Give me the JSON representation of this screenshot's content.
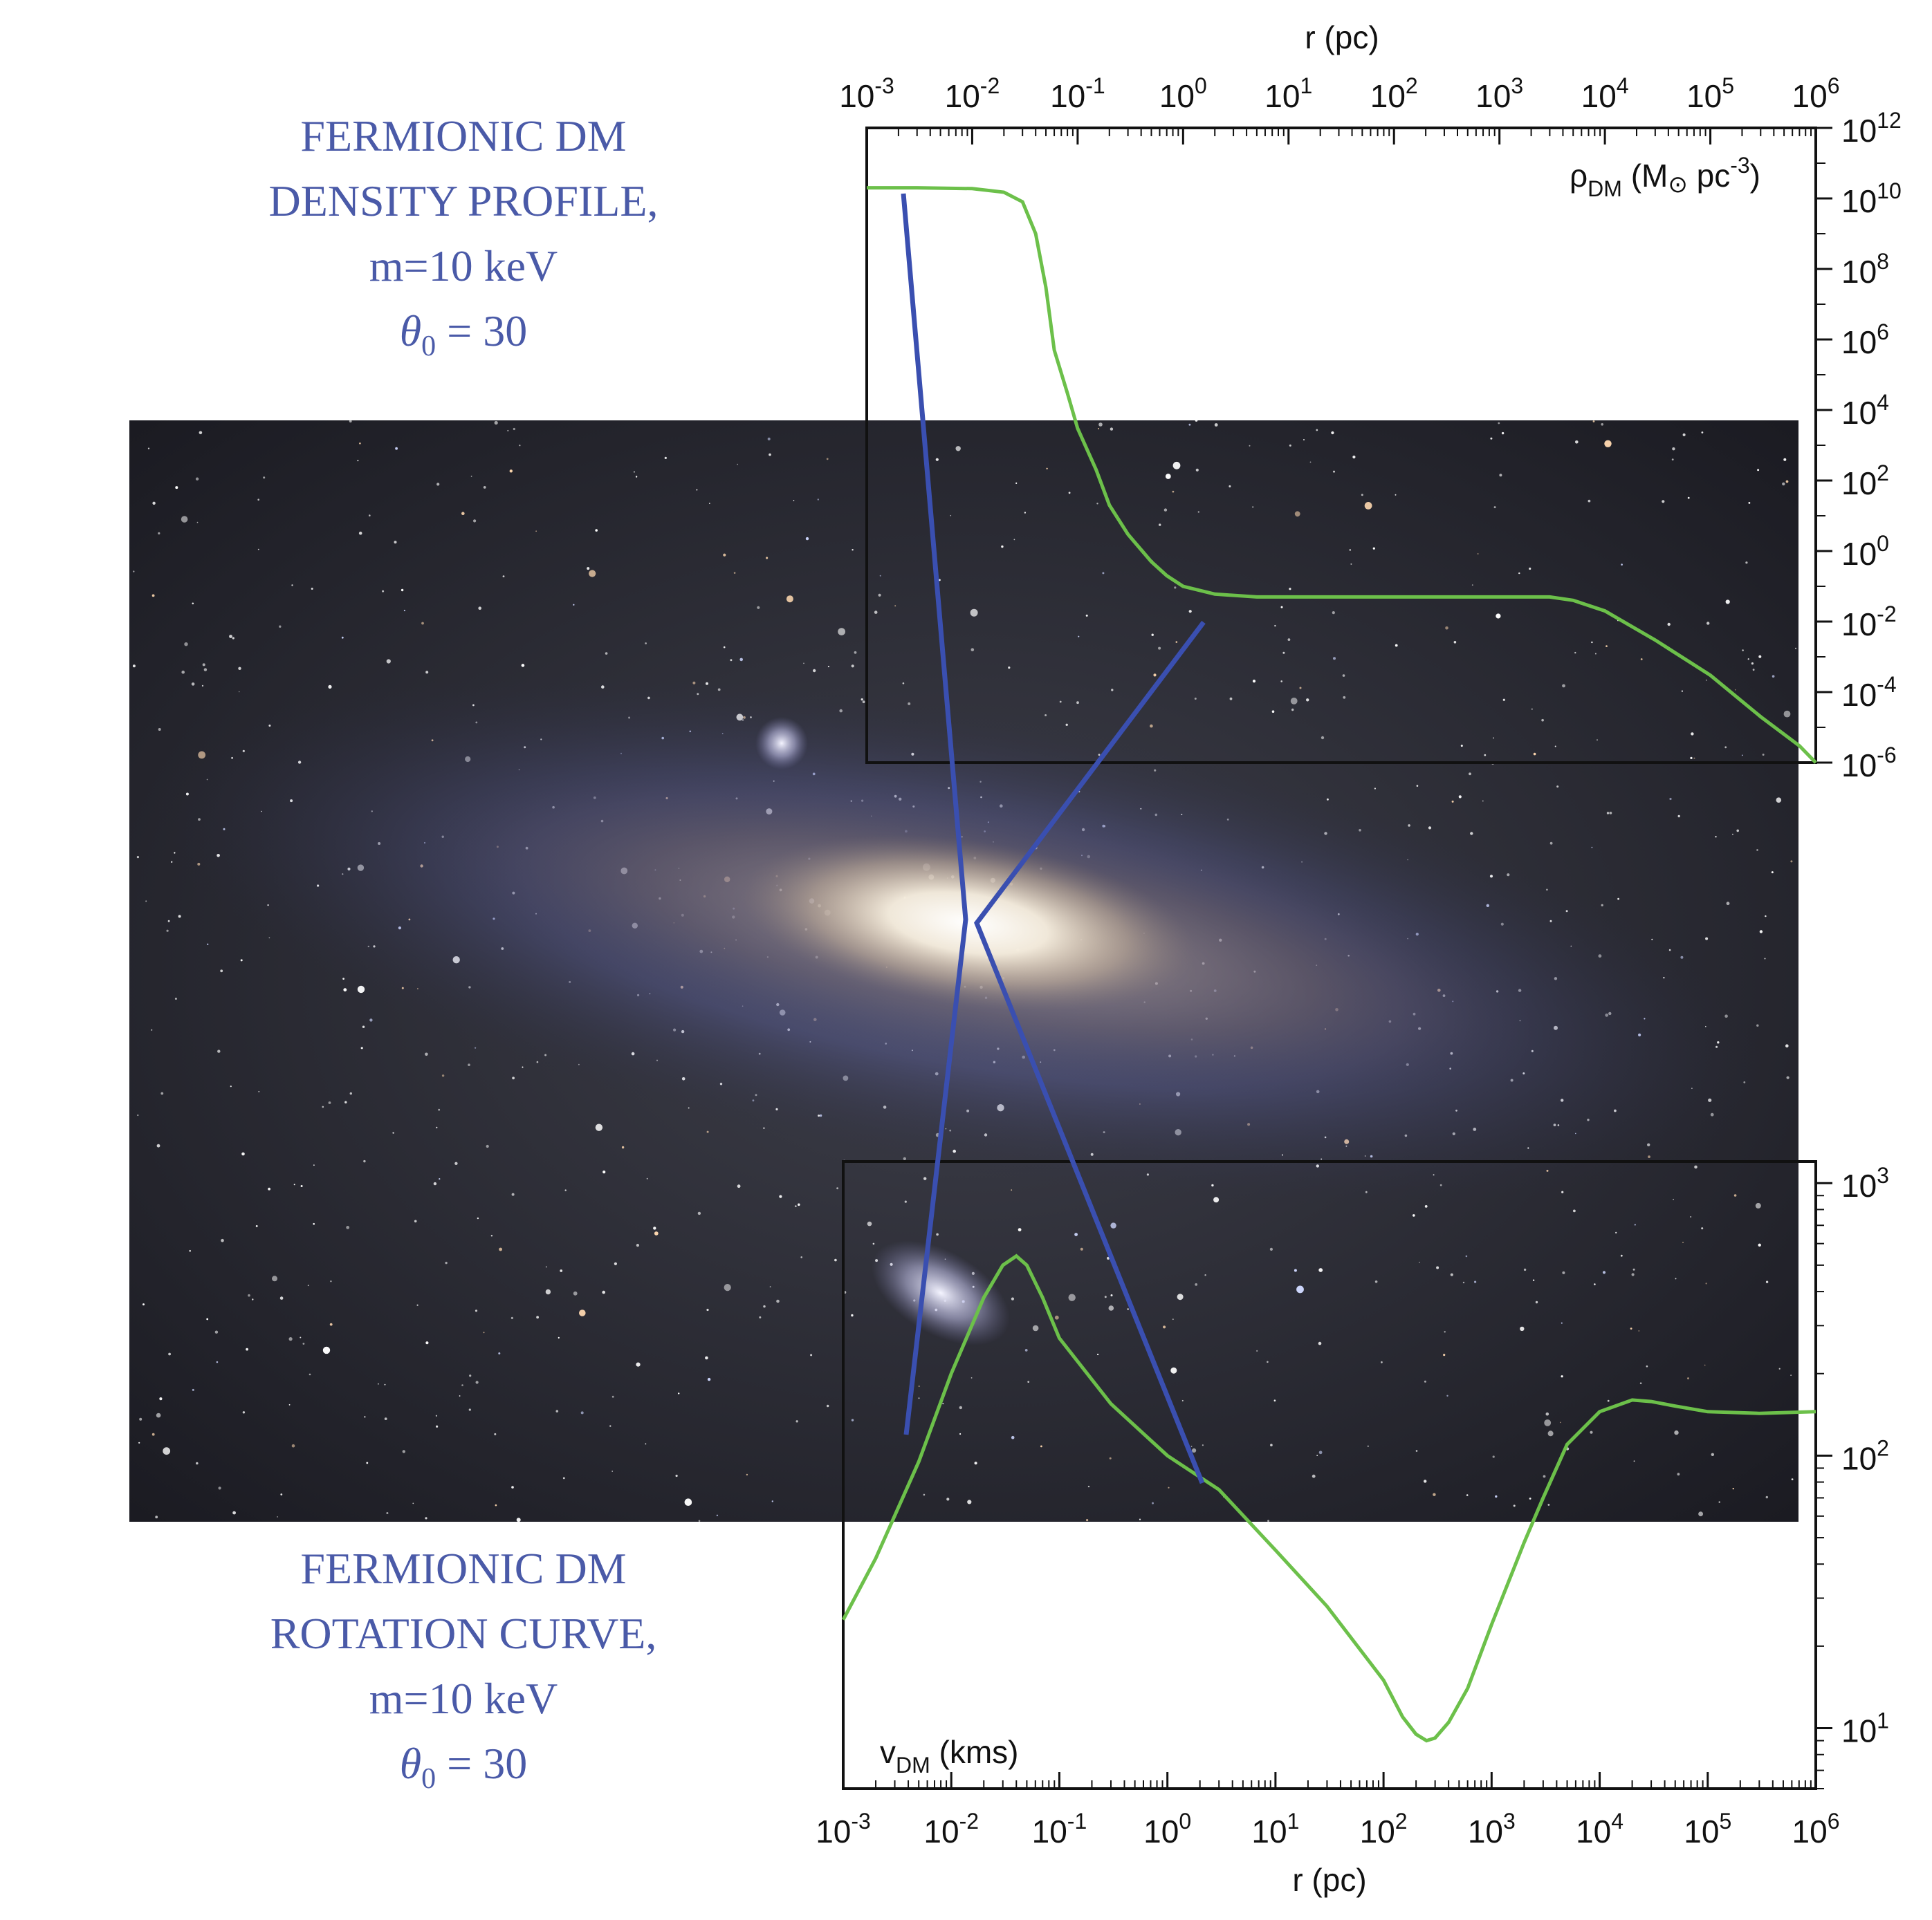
{
  "captions": {
    "density": {
      "line1": "FERMIONIC DM",
      "line2": "DENSITY PROFILE,",
      "line3": "m=10 keV",
      "theta_symbol": "θ",
      "theta_subscript": "0",
      "theta_value": "= 30"
    },
    "rotation": {
      "line1": "FERMIONIC DM",
      "line2": "ROTATION CURVE,",
      "line3": "m=10 keV",
      "theta_symbol": "θ",
      "theta_subscript": "0",
      "theta_value": "= 30"
    }
  },
  "background_image": "Andromeda galaxy star field photograph",
  "colors": {
    "curve": "#6cc04a",
    "pointer": "#3a4fb0",
    "caption": "#4a5aa8",
    "axis": "#111111"
  },
  "chart_data": [
    {
      "type": "line",
      "panel": "density",
      "xlabel": "r (pc)",
      "xscale": "log",
      "xlim": [
        0.001,
        1000000
      ],
      "x_tick_labels": [
        "10^-3",
        "10^-2",
        "10^-1",
        "10^0",
        "10^1",
        "10^2",
        "10^3",
        "10^4",
        "10^5",
        "10^6"
      ],
      "ylabel": "ρDM (M⊙ pc-3)",
      "ylabel_parts": {
        "symbol": "ρ",
        "sub": "DM",
        "open": " (M",
        "sun": "⊙",
        "unit": " pc",
        "sup": "-3",
        "close": ")"
      },
      "yscale": "log",
      "ylim": [
        1e-06,
        1000000000000
      ],
      "y_tick_labels": [
        "10^-6",
        "10^-4",
        "10^-2",
        "10^0",
        "10^2",
        "10^4",
        "10^6",
        "10^8",
        "10^10",
        "10^12"
      ],
      "series": [
        {
          "x": [
            0.001,
            0.003,
            0.01,
            0.02,
            0.03,
            0.04,
            0.05,
            0.06,
            0.08,
            0.1,
            0.15,
            0.2,
            0.3,
            0.5,
            0.7,
            1,
            2,
            5,
            10,
            100,
            1000,
            3000,
            5000,
            10000,
            30000,
            100000,
            300000,
            700000,
            1000000
          ],
          "y": [
            20000000000.0,
            20000000000.0,
            19000000000.0,
            15000000000.0,
            8000000000.0,
            1000000000.0,
            30000000.0,
            500000.0,
            30000.0,
            3000.0,
            200,
            20,
            3,
            0.5,
            0.2,
            0.1,
            0.06,
            0.05,
            0.05,
            0.05,
            0.05,
            0.05,
            0.04,
            0.02,
            0.003,
            0.0003,
            2e-05,
            3e-06,
            1e-06
          ]
        }
      ]
    },
    {
      "type": "line",
      "panel": "rotation",
      "xlabel": "r (pc)",
      "xscale": "log",
      "xlim": [
        0.001,
        1000000
      ],
      "x_tick_labels": [
        "10^-3",
        "10^-2",
        "10^-1",
        "10^0",
        "10^1",
        "10^2",
        "10^3",
        "10^4",
        "10^5",
        "10^6"
      ],
      "ylabel": "vDM (kms)",
      "ylabel_parts": {
        "symbol": "v",
        "sub": "DM",
        "unit": " (kms)"
      },
      "yscale": "log",
      "ylim": [
        6,
        1200
      ],
      "y_tick_labels": [
        "10^1",
        "10^2",
        "10^3"
      ],
      "series": [
        {
          "x": [
            0.001,
            0.002,
            0.005,
            0.01,
            0.02,
            0.03,
            0.04,
            0.05,
            0.07,
            0.1,
            0.3,
            1,
            3,
            10,
            30,
            100,
            150,
            200,
            250,
            300,
            400,
            600,
            1000,
            2000,
            3000,
            5000,
            10000,
            20000,
            30000,
            50000,
            100000,
            300000,
            1000000
          ],
          "y": [
            25,
            42,
            95,
            200,
            380,
            500,
            540,
            500,
            380,
            270,
            155,
            100,
            75,
            45,
            28,
            15,
            11,
            9.5,
            9,
            9.2,
            10.5,
            14,
            24,
            48,
            70,
            110,
            145,
            160,
            158,
            152,
            145,
            143,
            145
          ]
        }
      ]
    }
  ]
}
